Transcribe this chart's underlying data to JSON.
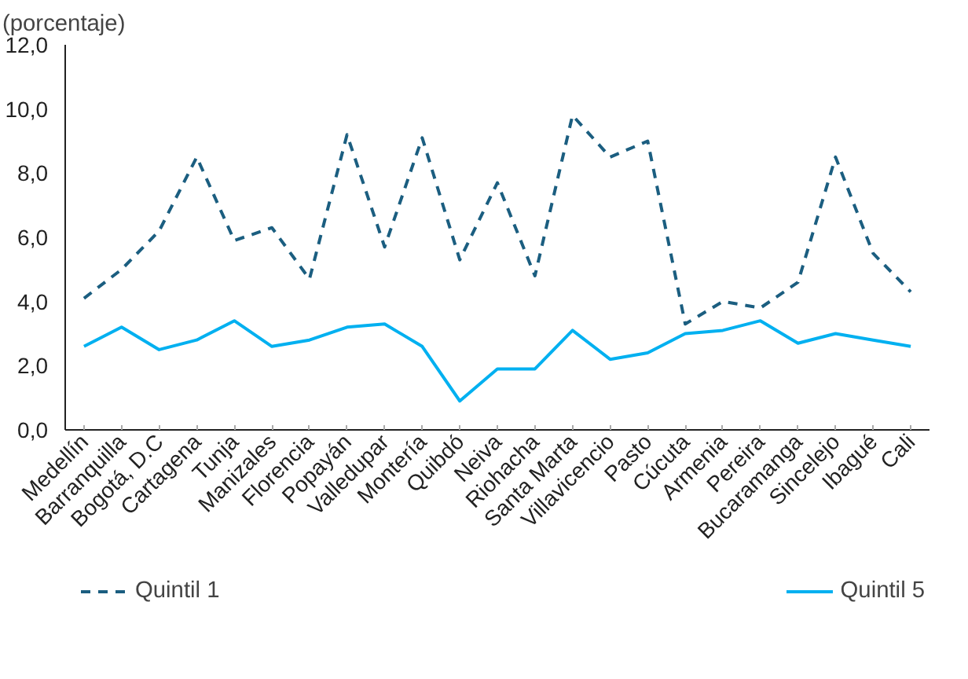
{
  "chart_data": {
    "type": "line",
    "ylabel": "(porcentaje)",
    "categories": [
      "Medellín",
      "Barranquilla",
      "Bogotá, D.C",
      "Cartagena",
      "Tunja",
      "Manizales",
      "Florencia",
      "Popayán",
      "Valledupar",
      "Montería",
      "Quibdó",
      "Neiva",
      "Riohacha",
      "Santa Marta",
      "Villavicencio",
      "Pasto",
      "Cúcuta",
      "Armenia",
      "Pereira",
      "Bucaramanga",
      "Sincelejo",
      "Ibagué",
      "Cali"
    ],
    "series": [
      {
        "name": "Quintil 1",
        "color": "#1b5e80",
        "line_style": "dashed",
        "values": [
          4.1,
          5.0,
          6.2,
          8.5,
          5.9,
          6.3,
          4.7,
          9.2,
          5.7,
          9.1,
          5.3,
          7.7,
          4.8,
          9.8,
          8.5,
          9.0,
          3.3,
          4.0,
          3.8,
          4.6,
          8.5,
          5.5,
          4.3
        ]
      },
      {
        "name": "Quintil 5",
        "color": "#00b0f0",
        "line_style": "solid",
        "values": [
          2.6,
          3.2,
          2.5,
          2.8,
          3.4,
          2.6,
          2.8,
          3.2,
          3.3,
          2.6,
          0.9,
          1.9,
          1.9,
          3.1,
          2.2,
          2.4,
          3.0,
          3.1,
          3.4,
          2.7,
          3.0,
          2.8,
          2.6
        ]
      }
    ],
    "ylim": [
      0,
      12
    ],
    "yticks": [
      {
        "value": 0,
        "label": "0,0"
      },
      {
        "value": 2,
        "label": "2,0"
      },
      {
        "value": 4,
        "label": "4,0"
      },
      {
        "value": 6,
        "label": "6,0"
      },
      {
        "value": 8,
        "label": "8,0"
      },
      {
        "value": 10,
        "label": "10,0"
      },
      {
        "value": 12,
        "label": "12,0"
      }
    ],
    "grid": false,
    "legend": "bottom",
    "marker": "none"
  }
}
